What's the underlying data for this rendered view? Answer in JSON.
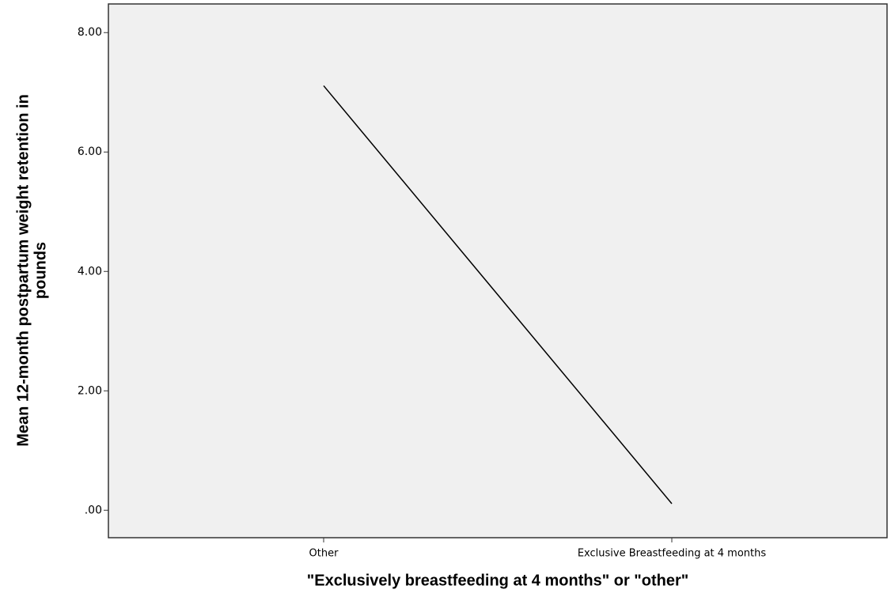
{
  "chart_data": {
    "type": "line",
    "xlabel": "\"Exclusively breastfeeding at 4 months\" or \"other\"",
    "ylabel": [
      "Mean 12-month postpartum weight retention in",
      "pounds"
    ],
    "categories": [
      "Other",
      "Exclusive Breastfeeding at 4 months"
    ],
    "series": [
      {
        "color": "#000000",
        "values": [
          7.11,
          0.11
        ]
      }
    ],
    "ylim": [
      -0.46,
      8.48
    ],
    "yticks": [
      {
        "value": 0,
        "label": ".00"
      },
      {
        "value": 2,
        "label": "2.00"
      },
      {
        "value": 4,
        "label": "4.00"
      },
      {
        "value": 6,
        "label": "6.00"
      },
      {
        "value": 8,
        "label": "8.00"
      }
    ]
  }
}
